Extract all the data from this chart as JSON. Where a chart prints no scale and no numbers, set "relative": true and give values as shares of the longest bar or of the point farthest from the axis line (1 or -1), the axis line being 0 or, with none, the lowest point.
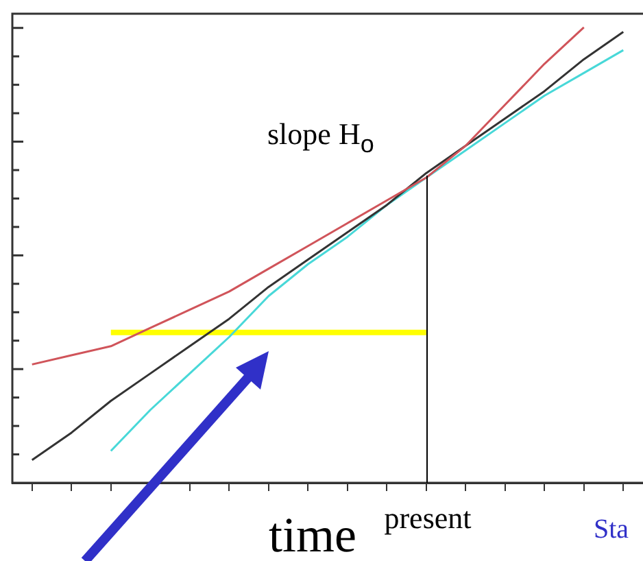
{
  "chart_data": {
    "type": "line",
    "relative": true,
    "xlabel": "time",
    "categories": [
      null,
      null,
      null,
      null,
      null,
      null,
      null,
      null,
      null,
      null,
      null,
      null,
      null,
      null,
      null,
      null
    ],
    "series": [
      {
        "color": "#d0545a",
        "values": [
          0.26,
          0.28,
          0.3,
          0.34,
          0.38,
          0.42,
          0.47,
          0.52,
          0.57,
          0.62,
          0.67,
          0.74,
          0.83,
          0.92,
          1.0,
          null
        ]
      },
      {
        "color": "#333333",
        "values": [
          0.05,
          0.11,
          0.18,
          0.24,
          0.3,
          0.36,
          0.43,
          0.49,
          0.55,
          0.61,
          0.68,
          0.74,
          0.8,
          0.86,
          0.93,
          0.99
        ]
      },
      {
        "color": "#48d8d8",
        "values": [
          null,
          null,
          0.07,
          0.16,
          0.24,
          0.32,
          0.41,
          0.48,
          0.54,
          0.61,
          0.67,
          0.73,
          0.79,
          0.85,
          0.9,
          0.95
        ]
      },
      {
        "color": "#ffff00",
        "values": [
          null,
          null,
          0.33,
          0.33,
          0.33,
          0.33,
          0.33,
          0.33,
          0.33,
          0.33,
          0.33,
          null,
          null,
          null,
          null,
          null
        ]
      }
    ],
    "annotations": [
      "slope H$_{o}$",
      "present",
      "Sta"
    ],
    "grid": false,
    "legend": false,
    "marker": "none",
    "line_style": "solid"
  }
}
